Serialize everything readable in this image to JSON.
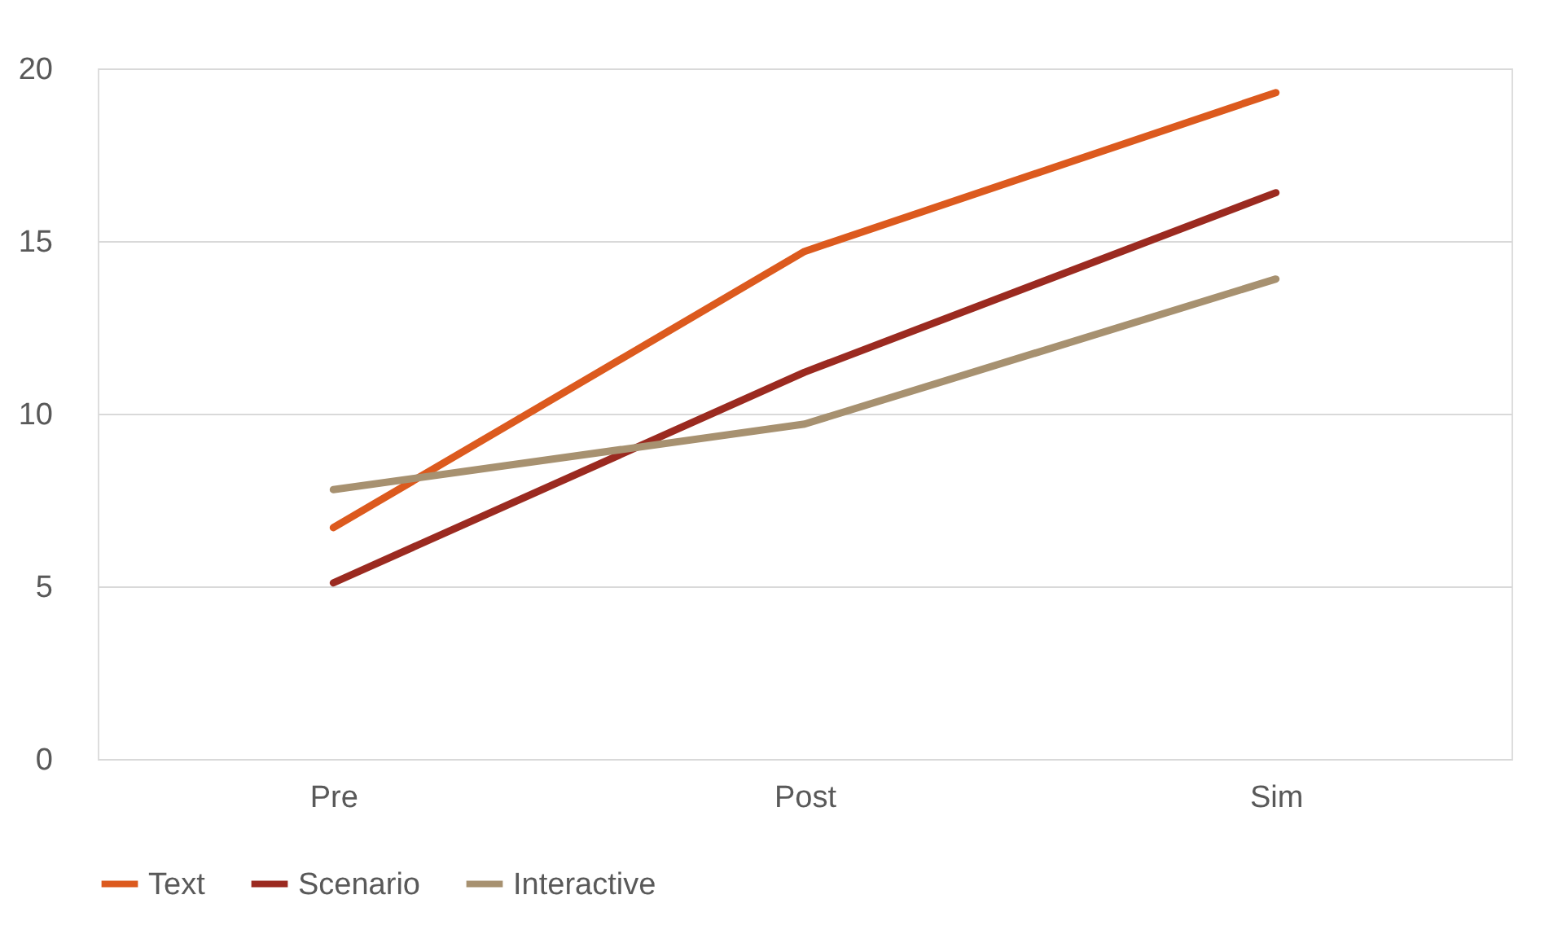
{
  "chart_data": {
    "type": "line",
    "categories": [
      "Pre",
      "Post",
      "Sim"
    ],
    "series": [
      {
        "name": "Text",
        "color": "#dc5a1e",
        "values": [
          6.7,
          14.7,
          19.3
        ]
      },
      {
        "name": "Scenario",
        "color": "#9b2a20",
        "values": [
          5.1,
          11.2,
          16.4
        ]
      },
      {
        "name": "Interactive",
        "color": "#a79170",
        "values": [
          7.8,
          9.7,
          13.9
        ]
      }
    ],
    "ylim": [
      0,
      20
    ],
    "yticks": [
      0,
      5,
      10,
      15,
      20
    ],
    "grid": "y",
    "legend": "bottom",
    "marker": "none",
    "line_style": "solid"
  }
}
